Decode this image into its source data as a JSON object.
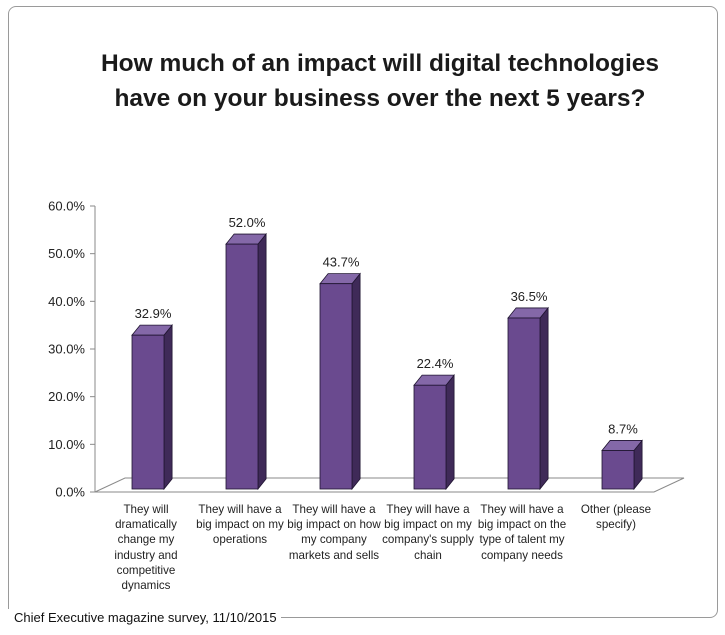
{
  "chart_data": {
    "type": "bar",
    "title": "How much of an impact will digital technologies have on your business over the next 5 years?",
    "xlabel": "",
    "ylabel": "",
    "categories": [
      "They will dramatically change my industry and competitive dynamics",
      "They will have a big impact on my operations",
      "They will have a big impact on how my company markets and sells",
      "They will have a big impact on my company's supply chain",
      "They will have a big impact on the type of talent my company needs",
      "Other (please specify)"
    ],
    "values": [
      32.9,
      52.0,
      43.7,
      22.4,
      36.5,
      8.7
    ],
    "value_labels": [
      "32.9%",
      "52.0%",
      "43.7%",
      "22.4%",
      "36.5%",
      "8.7%"
    ],
    "ylim": [
      0,
      60
    ],
    "yticks": [
      "0.0%",
      "10.0%",
      "20.0%",
      "30.0%",
      "40.0%",
      "50.0%",
      "60.0%"
    ],
    "grid": false,
    "legend": "none",
    "style": "3d-column"
  },
  "colors": {
    "bar_front": "#6a4a8f",
    "bar_top": "#8468a8",
    "bar_side": "#3f2a58",
    "floor": "#ffffff"
  },
  "source": "Chief Executive magazine survey, 11/10/2015"
}
